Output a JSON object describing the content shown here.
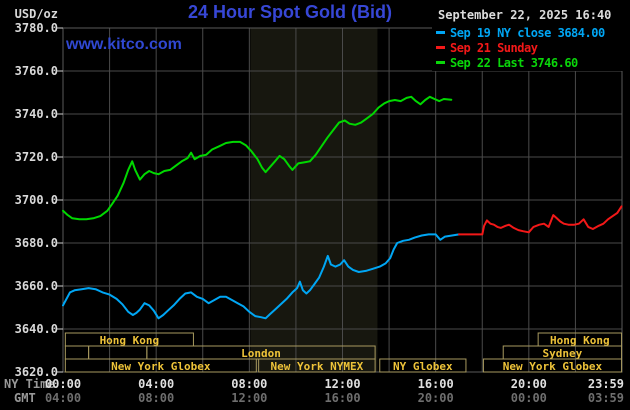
{
  "header": {
    "unit_label": "USD/oz",
    "title": "24 Hour Spot Gold (Bid)",
    "site": "www.kitco.com",
    "datetime": "September 22, 2025 16:40"
  },
  "legend": [
    {
      "label": "Sep 19 NY close 3684.00",
      "color": "#00a6f4"
    },
    {
      "label": "Sep 21 Sunday",
      "color": "#f31818"
    },
    {
      "label": "Sep 22 Last 3746.60",
      "color": "#0ad60a"
    }
  ],
  "axes": {
    "y_ticks": [
      "3780.0",
      "3760.0",
      "3740.0",
      "3720.0",
      "3700.0",
      "3680.0",
      "3660.0",
      "3640.0",
      "3620.0"
    ],
    "x_row_label_ny": "NY Time",
    "x_row_label_gmt": "GMT",
    "x_ticks_ny": [
      "00:00",
      "04:00",
      "08:00",
      "12:00",
      "16:00",
      "20:00",
      "23:59"
    ],
    "x_ticks_gmt": [
      "04:00",
      "08:00",
      "12:00",
      "16:00",
      "20:00",
      "00:00",
      "03:59"
    ],
    "x_tick_hours": [
      0,
      4,
      8,
      12,
      16,
      20,
      23.983
    ]
  },
  "chart_data": {
    "type": "line",
    "title": "24 Hour Spot Gold (Bid)",
    "xlabel": "NY Time (00:00 - 23:59)",
    "ylabel": "USD/oz",
    "ylim": [
      3620,
      3780
    ],
    "xlim_hours": [
      0,
      24
    ],
    "grid": true,
    "legend_position": "top-right",
    "nymex_shaded_band_hours": [
      8.05,
      13.5
    ],
    "series": [
      {
        "name": "Sep 19 NY close 3684.00",
        "key": "sep19",
        "color": "#00a6f4",
        "points": [
          [
            0,
            3651
          ],
          [
            0.15,
            3654
          ],
          [
            0.3,
            3657
          ],
          [
            0.5,
            3658
          ],
          [
            0.8,
            3658.5
          ],
          [
            1.1,
            3659
          ],
          [
            1.4,
            3658.5
          ],
          [
            1.7,
            3657
          ],
          [
            2.0,
            3656
          ],
          [
            2.3,
            3654
          ],
          [
            2.55,
            3651.5
          ],
          [
            2.8,
            3648
          ],
          [
            3.0,
            3646.5
          ],
          [
            3.15,
            3647.5
          ],
          [
            3.3,
            3649
          ],
          [
            3.5,
            3652
          ],
          [
            3.7,
            3651
          ],
          [
            3.9,
            3648.5
          ],
          [
            4.1,
            3645
          ],
          [
            4.3,
            3646.5
          ],
          [
            4.5,
            3648.5
          ],
          [
            4.75,
            3651
          ],
          [
            5.0,
            3654
          ],
          [
            5.25,
            3656.5
          ],
          [
            5.5,
            3657
          ],
          [
            5.75,
            3655
          ],
          [
            6.0,
            3654
          ],
          [
            6.25,
            3652
          ],
          [
            6.5,
            3653.5
          ],
          [
            6.75,
            3655
          ],
          [
            7.0,
            3655
          ],
          [
            7.25,
            3653.5
          ],
          [
            7.5,
            3652
          ],
          [
            7.75,
            3650.5
          ],
          [
            8.0,
            3648
          ],
          [
            8.25,
            3646
          ],
          [
            8.5,
            3645.5
          ],
          [
            8.7,
            3645
          ],
          [
            8.9,
            3647
          ],
          [
            9.1,
            3649
          ],
          [
            9.35,
            3651.5
          ],
          [
            9.6,
            3654
          ],
          [
            9.85,
            3657
          ],
          [
            10.05,
            3659
          ],
          [
            10.17,
            3662
          ],
          [
            10.3,
            3658
          ],
          [
            10.45,
            3656.5
          ],
          [
            10.6,
            3658
          ],
          [
            10.8,
            3661
          ],
          [
            11.0,
            3664
          ],
          [
            11.2,
            3669
          ],
          [
            11.37,
            3674
          ],
          [
            11.5,
            3670
          ],
          [
            11.7,
            3669
          ],
          [
            11.9,
            3670
          ],
          [
            12.07,
            3672
          ],
          [
            12.25,
            3669
          ],
          [
            12.45,
            3667.5
          ],
          [
            12.7,
            3666.5
          ],
          [
            13.0,
            3667
          ],
          [
            13.3,
            3668
          ],
          [
            13.6,
            3669
          ],
          [
            13.85,
            3670.5
          ],
          [
            14.05,
            3673
          ],
          [
            14.2,
            3677
          ],
          [
            14.35,
            3680
          ],
          [
            14.6,
            3681
          ],
          [
            14.85,
            3681.5
          ],
          [
            15.1,
            3682.5
          ],
          [
            15.4,
            3683.5
          ],
          [
            15.7,
            3684
          ],
          [
            16.0,
            3684
          ],
          [
            16.2,
            3681.5
          ],
          [
            16.4,
            3683
          ],
          [
            16.7,
            3683.5
          ],
          [
            17.0,
            3684
          ]
        ]
      },
      {
        "name": "Sep 21 Sunday",
        "key": "sep21",
        "color": "#f31818",
        "points": [
          [
            17.0,
            3684
          ],
          [
            17.5,
            3684
          ],
          [
            18.0,
            3684
          ],
          [
            18.08,
            3688
          ],
          [
            18.2,
            3690.5
          ],
          [
            18.35,
            3689
          ],
          [
            18.5,
            3688.5
          ],
          [
            18.65,
            3687.5
          ],
          [
            18.8,
            3687
          ],
          [
            19.0,
            3688
          ],
          [
            19.15,
            3688.5
          ],
          [
            19.35,
            3687
          ],
          [
            19.55,
            3686
          ],
          [
            19.75,
            3685.5
          ],
          [
            20.0,
            3685
          ],
          [
            20.2,
            3687.5
          ],
          [
            20.45,
            3688.5
          ],
          [
            20.65,
            3689
          ],
          [
            20.85,
            3687.5
          ],
          [
            21.05,
            3693
          ],
          [
            21.2,
            3691.5
          ],
          [
            21.35,
            3690
          ],
          [
            21.5,
            3689
          ],
          [
            21.7,
            3688.5
          ],
          [
            21.95,
            3688.5
          ],
          [
            22.15,
            3689
          ],
          [
            22.35,
            3691
          ],
          [
            22.55,
            3687.5
          ],
          [
            22.75,
            3686.5
          ],
          [
            23.0,
            3688
          ],
          [
            23.2,
            3689
          ],
          [
            23.4,
            3691
          ],
          [
            23.6,
            3692.5
          ],
          [
            23.8,
            3694
          ],
          [
            23.98,
            3697
          ]
        ]
      },
      {
        "name": "Sep 22 Last 3746.60",
        "key": "sep22",
        "color": "#00d800",
        "points": [
          [
            0,
            3695
          ],
          [
            0.2,
            3693
          ],
          [
            0.4,
            3691.5
          ],
          [
            0.7,
            3691
          ],
          [
            1.0,
            3691
          ],
          [
            1.3,
            3691.5
          ],
          [
            1.6,
            3692.5
          ],
          [
            1.9,
            3695
          ],
          [
            2.1,
            3698
          ],
          [
            2.35,
            3702
          ],
          [
            2.6,
            3708
          ],
          [
            2.8,
            3714
          ],
          [
            2.97,
            3718
          ],
          [
            3.1,
            3714
          ],
          [
            3.3,
            3709.5
          ],
          [
            3.5,
            3712
          ],
          [
            3.7,
            3713.5
          ],
          [
            3.9,
            3712.5
          ],
          [
            4.1,
            3712
          ],
          [
            4.35,
            3713.5
          ],
          [
            4.6,
            3714
          ],
          [
            4.85,
            3716
          ],
          [
            5.1,
            3718
          ],
          [
            5.35,
            3719.5
          ],
          [
            5.5,
            3722
          ],
          [
            5.65,
            3719
          ],
          [
            5.9,
            3720.5
          ],
          [
            6.15,
            3721
          ],
          [
            6.4,
            3723.5
          ],
          [
            6.7,
            3725
          ],
          [
            7.0,
            3726.5
          ],
          [
            7.3,
            3727
          ],
          [
            7.6,
            3727
          ],
          [
            7.85,
            3725.5
          ],
          [
            8.1,
            3722.5
          ],
          [
            8.35,
            3719
          ],
          [
            8.55,
            3715
          ],
          [
            8.7,
            3713
          ],
          [
            8.9,
            3715.5
          ],
          [
            9.1,
            3718
          ],
          [
            9.3,
            3720.5
          ],
          [
            9.5,
            3719
          ],
          [
            9.7,
            3716
          ],
          [
            9.85,
            3714
          ],
          [
            10.1,
            3717
          ],
          [
            10.35,
            3717.5
          ],
          [
            10.6,
            3718
          ],
          [
            10.85,
            3721
          ],
          [
            11.1,
            3725
          ],
          [
            11.35,
            3729
          ],
          [
            11.6,
            3732.5
          ],
          [
            11.85,
            3736
          ],
          [
            12.1,
            3737
          ],
          [
            12.3,
            3735.5
          ],
          [
            12.55,
            3735
          ],
          [
            12.8,
            3736
          ],
          [
            13.05,
            3738
          ],
          [
            13.3,
            3740
          ],
          [
            13.55,
            3743
          ],
          [
            13.8,
            3745
          ],
          [
            14.0,
            3746
          ],
          [
            14.25,
            3746.5
          ],
          [
            14.5,
            3746
          ],
          [
            14.75,
            3747.5
          ],
          [
            14.95,
            3748
          ],
          [
            15.15,
            3746
          ],
          [
            15.35,
            3744.5
          ],
          [
            15.55,
            3746.5
          ],
          [
            15.75,
            3748
          ],
          [
            15.95,
            3747
          ],
          [
            16.15,
            3746
          ],
          [
            16.35,
            3747
          ],
          [
            16.67,
            3746.6
          ]
        ]
      }
    ],
    "market_sessions": [
      {
        "row": 0,
        "label": "Hong Kong",
        "start_h": 0.1,
        "end_h": 5.6
      },
      {
        "row": 0,
        "label": "Hong Kong",
        "start_h": 20.4,
        "end_h": 23.98
      },
      {
        "row": 1,
        "label": "",
        "start_h": 0.1,
        "end_h": 1.1
      },
      {
        "row": 1,
        "label": "",
        "start_h": 1.1,
        "end_h": 3.6
      },
      {
        "row": 1,
        "label": "London",
        "start_h": 3.6,
        "end_h": 13.4
      },
      {
        "row": 1,
        "label": "Sydney",
        "start_h": 18.9,
        "end_h": 23.98
      },
      {
        "row": 2,
        "label": "New York Globex",
        "start_h": 0.1,
        "end_h": 8.3
      },
      {
        "row": 2,
        "label": "New York NYMEX",
        "start_h": 8.4,
        "end_h": 13.4
      },
      {
        "row": 2,
        "label": "NY Globex",
        "start_h": 13.6,
        "end_h": 17.3
      },
      {
        "row": 2,
        "label": "New York Globex",
        "start_h": 18.05,
        "end_h": 23.98
      }
    ]
  },
  "colors": {
    "background": "#000000",
    "grid": "#4a4a4a",
    "plot_border": "#5a5a5a",
    "band": "#17170f",
    "session_border": "#a89a5f",
    "session_text": "#eec339",
    "title_blue": "#3747d6",
    "tick_text": "#d9d9d9",
    "gmt_text": "#6e6e6e"
  }
}
